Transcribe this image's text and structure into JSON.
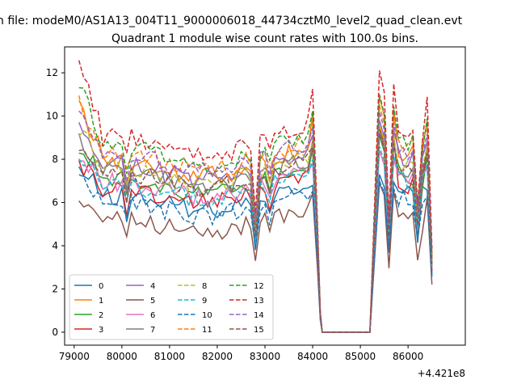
{
  "figure": {
    "suptitle": "n file: modeM0/AS1A13_004T11_9000006018_44734cztM0_level2_quad_clean.evt",
    "offset_label": "+4.421e8"
  },
  "chart_data": {
    "type": "line",
    "title": "Quadrant 1 module wise count rates with 100.0s bins.",
    "xlabel": "",
    "ylabel": "",
    "x_offset": 442100000,
    "xlim": [
      78800,
      87200
    ],
    "ylim": [
      -0.6,
      13.2
    ],
    "xticks": [
      79000,
      80000,
      81000,
      82000,
      83000,
      84000,
      85000,
      86000
    ],
    "xtick_labels": [
      "79000",
      "80000",
      "81000",
      "82000",
      "83000",
      "84000",
      "85000",
      "86000"
    ],
    "yticks": [
      0,
      2,
      4,
      6,
      8,
      10,
      12
    ],
    "ytick_labels": [
      "0",
      "2",
      "4",
      "6",
      "8",
      "10",
      "12"
    ],
    "grid": false,
    "legend": {
      "placement": "lower-left",
      "columns": 4
    },
    "x_start": 79100,
    "x_step": 100,
    "gap_segment": {
      "x_start": 84200,
      "x_end": 85200,
      "value": 0
    },
    "segment_a_end": 84100,
    "segment_b_start": 85300,
    "series": [
      {
        "name": "0",
        "color": "#1f77b4",
        "dashed": false,
        "level": 6.0,
        "start": 7.5,
        "drop": 3.8,
        "trough": 4.6,
        "peak": 7.3
      },
      {
        "name": "1",
        "color": "#ff7f0e",
        "dashed": false,
        "level": 7.6,
        "start": 10.3,
        "drop": 5.0,
        "trough": 6.1,
        "peak": 10.9
      },
      {
        "name": "2",
        "color": "#2ca02c",
        "dashed": false,
        "level": 6.7,
        "start": 8.5,
        "drop": 4.5,
        "trough": 5.3,
        "peak": 9.1
      },
      {
        "name": "3",
        "color": "#d62728",
        "dashed": false,
        "level": 6.3,
        "start": 7.9,
        "drop": 4.2,
        "trough": 5.0,
        "peak": 9.5
      },
      {
        "name": "4",
        "color": "#9467bd",
        "dashed": false,
        "level": 7.4,
        "start": 9.4,
        "drop": 4.8,
        "trough": 5.8,
        "peak": 9.8
      },
      {
        "name": "5",
        "color": "#8c564b",
        "dashed": false,
        "level": 4.9,
        "start": 6.4,
        "drop": 3.3,
        "trough": 3.7,
        "peak": 6.9
      },
      {
        "name": "6",
        "color": "#e377c2",
        "dashed": false,
        "level": 6.6,
        "start": 8.0,
        "drop": 4.4,
        "trough": 5.4,
        "peak": 8.4
      },
      {
        "name": "7",
        "color": "#7f7f7f",
        "dashed": false,
        "level": 7.1,
        "start": 9.0,
        "drop": 4.6,
        "trough": 5.6,
        "peak": 9.3
      },
      {
        "name": "8",
        "color": "#bcbd22",
        "dashed": true,
        "level": 7.2,
        "start": 9.5,
        "drop": 4.7,
        "trough": 5.7,
        "peak": 9.6
      },
      {
        "name": "9",
        "color": "#17becf",
        "dashed": true,
        "level": 6.5,
        "start": 8.2,
        "drop": 4.2,
        "trough": 5.2,
        "peak": 8.6
      },
      {
        "name": "10",
        "color": "#1f77b4",
        "dashed": true,
        "level": 5.7,
        "start": 7.2,
        "drop": 3.9,
        "trough": 4.8,
        "peak": 7.0
      },
      {
        "name": "11",
        "color": "#ff7f0e",
        "dashed": true,
        "level": 7.9,
        "start": 10.6,
        "drop": 5.1,
        "trough": 6.0,
        "peak": 10.5
      },
      {
        "name": "12",
        "color": "#2ca02c",
        "dashed": true,
        "level": 8.1,
        "start": 11.6,
        "drop": 5.3,
        "trough": 6.3,
        "peak": 11.0
      },
      {
        "name": "13",
        "color": "#d62728",
        "dashed": true,
        "level": 8.6,
        "start": 12.6,
        "drop": 5.5,
        "trough": 6.6,
        "peak": 12.1
      },
      {
        "name": "14",
        "color": "#9467bd",
        "dashed": true,
        "level": 7.8,
        "start": 10.0,
        "drop": 5.0,
        "trough": 6.0,
        "peak": 10.2
      },
      {
        "name": "15",
        "color": "#8c564b",
        "dashed": true,
        "level": 7.0,
        "start": 8.8,
        "drop": 4.4,
        "trough": 5.5,
        "peak": 9.2
      }
    ]
  }
}
